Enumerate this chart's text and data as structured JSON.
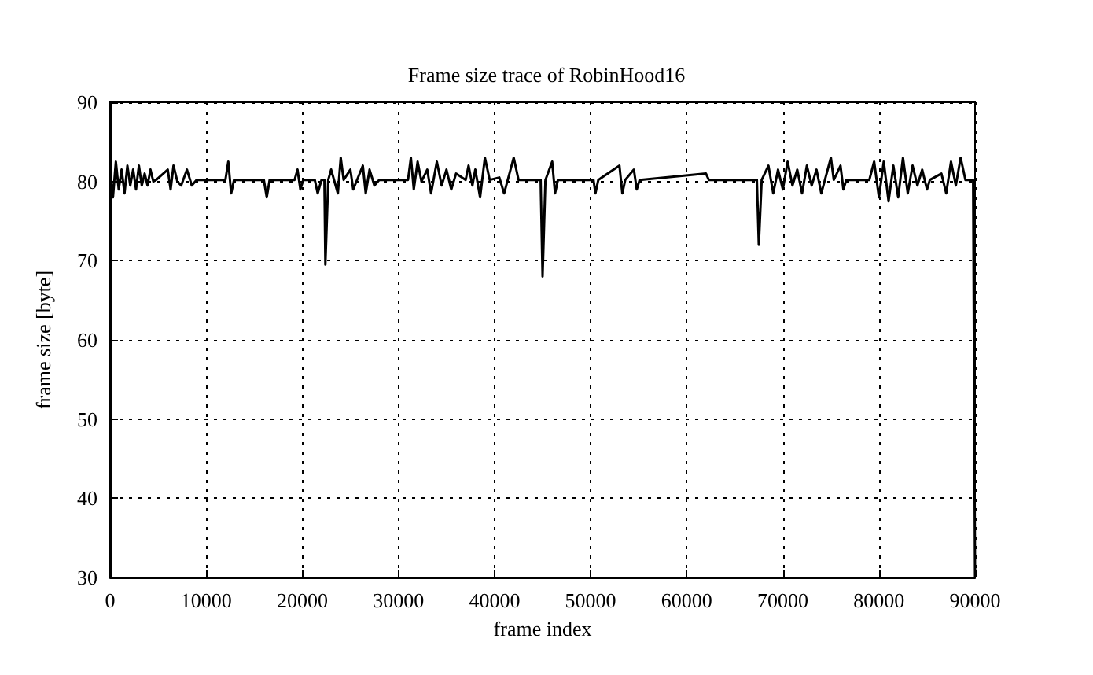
{
  "chart_data": {
    "type": "line",
    "title": "Frame size trace of RobinHood16",
    "xlabel": "frame index",
    "ylabel": "frame size [byte]",
    "xlim": [
      0,
      90000
    ],
    "ylim": [
      30,
      90
    ],
    "xticks": [
      0,
      10000,
      20000,
      30000,
      40000,
      50000,
      60000,
      70000,
      80000,
      90000
    ],
    "yticks": [
      30,
      40,
      50,
      60,
      70,
      80,
      90
    ],
    "grid": true,
    "marker": "none",
    "line_style": "solid",
    "series": [
      {
        "color": "#000000",
        "x": [
          0,
          300,
          600,
          900,
          1200,
          1500,
          1800,
          2100,
          2400,
          2700,
          3000,
          3300,
          3600,
          3900,
          4200,
          4500,
          4800,
          6000,
          6300,
          6600,
          7000,
          7400,
          8000,
          8500,
          9000,
          12000,
          12300,
          12600,
          12900,
          16000,
          16300,
          16600,
          19200,
          19500,
          19800,
          20100,
          21300,
          21600,
          22000,
          22300,
          22400,
          22700,
          23000,
          23700,
          24000,
          24300,
          25000,
          25300,
          26300,
          26600,
          27000,
          27500,
          28000,
          31000,
          31300,
          31600,
          32000,
          32400,
          33000,
          33400,
          34000,
          34500,
          35000,
          35500,
          36000,
          37000,
          37300,
          37700,
          38000,
          38500,
          39000,
          39500,
          40500,
          41000,
          42000,
          42500,
          44800,
          45000,
          45300,
          46000,
          46300,
          46600,
          50300,
          50500,
          50800,
          53000,
          53300,
          53600,
          54500,
          54800,
          55100,
          62000,
          62300,
          67300,
          67500,
          67800,
          68500,
          69000,
          69500,
          70000,
          70500,
          71000,
          71500,
          72000,
          72500,
          73000,
          73500,
          74000,
          75000,
          75300,
          76000,
          76300,
          76600,
          79000,
          79500,
          80000,
          80500,
          81000,
          81500,
          82000,
          82500,
          83000,
          83500,
          84000,
          84500,
          85000,
          85300,
          86500,
          87000,
          87500,
          88000,
          88500,
          89000,
          89800,
          90000
        ],
        "values": [
          81.5,
          78,
          82.5,
          79,
          81.5,
          78.5,
          82,
          79.5,
          81.5,
          79,
          82,
          79.5,
          81,
          79.5,
          81.5,
          80,
          80.2,
          81.5,
          79,
          82,
          80,
          79.5,
          81.5,
          79.5,
          80.2,
          80.2,
          82.5,
          78.5,
          80.2,
          80.2,
          78,
          80.2,
          80.2,
          81.5,
          79,
          80.2,
          80.2,
          78.5,
          80.2,
          80.2,
          69.5,
          80.2,
          81.5,
          78.5,
          83,
          80.2,
          81.5,
          79,
          82,
          78.5,
          81.5,
          79.5,
          80.2,
          80.2,
          83,
          79,
          82.5,
          80,
          81.5,
          78.5,
          82.5,
          79.5,
          81.5,
          79,
          81,
          80.2,
          82,
          79.5,
          81.5,
          78,
          83,
          80.2,
          80.5,
          78.5,
          83,
          80.2,
          80.2,
          68,
          80.2,
          82.5,
          78.5,
          80.2,
          80.2,
          78.5,
          80.2,
          82,
          78.5,
          80.2,
          81.5,
          79,
          80.2,
          81,
          80.2,
          80.2,
          72,
          80.2,
          82,
          78.5,
          81.5,
          79,
          82.5,
          79.5,
          81.5,
          78.5,
          82,
          79.5,
          81.5,
          78.5,
          83,
          80.2,
          82,
          79,
          80.2,
          80.2,
          82.5,
          78,
          82.5,
          77.5,
          82,
          78,
          83,
          78.5,
          82,
          79.5,
          81.5,
          79,
          80.2,
          81,
          78.5,
          82.5,
          79.5,
          83,
          80.2,
          80.2,
          30
        ]
      }
    ]
  }
}
